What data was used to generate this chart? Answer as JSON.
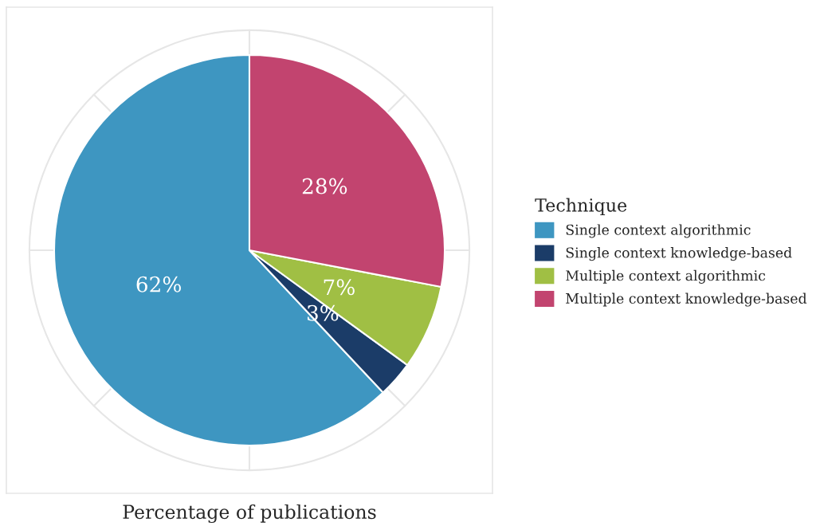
{
  "chart_data": {
    "type": "pie",
    "xlabel": "Percentage of publications",
    "legend_title": "Technique",
    "categories": [
      "Single context algorithmic",
      "Single context knowledge-based",
      "Multiple context algorithmic",
      "Multiple context knowledge-based"
    ],
    "values": [
      62,
      3,
      7,
      28
    ],
    "value_labels": [
      "62%",
      "3%",
      "7%",
      "28%"
    ],
    "colors": [
      "#3e96c1",
      "#1b3c68",
      "#a0bf44",
      "#c2446f"
    ],
    "legend": "right",
    "grid": true
  }
}
